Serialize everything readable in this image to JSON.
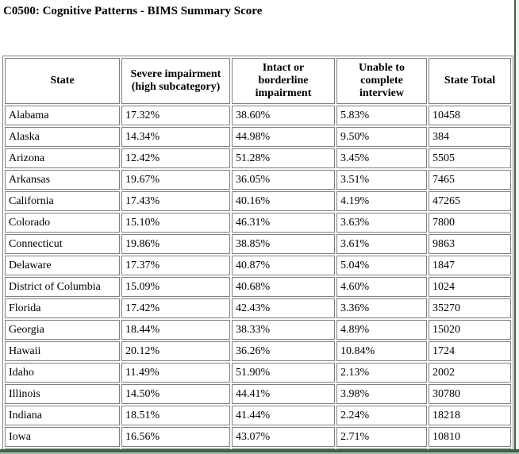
{
  "page": {
    "title": "C0500: Cognitive Patterns - BIMS Summary Score"
  },
  "table": {
    "columns": [
      "State",
      "Severe impairment (high subcategory)",
      "Intact or borderline impairment",
      "Unable to complete interview",
      "State Total"
    ],
    "rows": [
      [
        "Alabama",
        "17.32%",
        "38.60%",
        "5.83%",
        "10458"
      ],
      [
        "Alaska",
        "14.34%",
        "44.98%",
        "9.50%",
        "384"
      ],
      [
        "Arizona",
        "12.42%",
        "51.28%",
        "3.45%",
        "5505"
      ],
      [
        "Arkansas",
        "19.67%",
        "36.05%",
        "3.51%",
        "7465"
      ],
      [
        "California",
        "17.43%",
        "40.16%",
        "4.19%",
        "47265"
      ],
      [
        "Colorado",
        "15.10%",
        "46.31%",
        "3.63%",
        "7800"
      ],
      [
        "Connecticut",
        "19.86%",
        "38.85%",
        "3.61%",
        "9863"
      ],
      [
        "Delaware",
        "17.37%",
        "40.87%",
        "5.04%",
        "1847"
      ],
      [
        "District of Columbia",
        "15.09%",
        "40.68%",
        "4.60%",
        "1024"
      ],
      [
        "Florida",
        "17.42%",
        "42.43%",
        "3.36%",
        "35270"
      ],
      [
        "Georgia",
        "18.44%",
        "38.33%",
        "4.89%",
        "15020"
      ],
      [
        "Hawaii",
        "20.12%",
        "36.26%",
        "10.84%",
        "1724"
      ],
      [
        "Idaho",
        "11.49%",
        "51.90%",
        "2.13%",
        "2002"
      ],
      [
        "Illinois",
        "14.50%",
        "44.41%",
        "3.98%",
        "30780"
      ],
      [
        "Indiana",
        "18.51%",
        "41.44%",
        "2.24%",
        "18218"
      ],
      [
        "Iowa",
        "16.56%",
        "43.07%",
        "2.71%",
        "10810"
      ]
    ]
  },
  "colors": {
    "table_border": "#808080",
    "frame_edge_green": "#45604a",
    "frame_strip_light": "#f1f5f0",
    "text": "#000000",
    "background": "#ffffff"
  }
}
